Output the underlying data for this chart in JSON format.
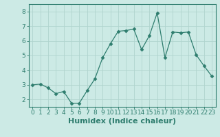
{
  "x": [
    0,
    1,
    2,
    3,
    4,
    5,
    6,
    7,
    8,
    9,
    10,
    11,
    12,
    13,
    14,
    15,
    16,
    17,
    18,
    19,
    20,
    21,
    22,
    23
  ],
  "y": [
    3.0,
    3.05,
    2.8,
    2.4,
    2.55,
    1.75,
    1.75,
    2.6,
    3.4,
    4.85,
    5.8,
    6.65,
    6.7,
    6.8,
    5.4,
    6.35,
    7.9,
    4.85,
    6.6,
    6.55,
    6.6,
    5.05,
    4.3,
    3.6
  ],
  "line_color": "#2e7d6e",
  "marker": "D",
  "marker_size": 2.5,
  "bg_color": "#cceae5",
  "grid_color": "#b0d4ce",
  "xlabel": "Humidex (Indice chaleur)",
  "xlabel_fontsize": 8,
  "tick_fontsize": 6.5,
  "ylim": [
    1.5,
    8.5
  ],
  "xlim": [
    -0.5,
    23.5
  ],
  "yticks": [
    2,
    3,
    4,
    5,
    6,
    7,
    8
  ],
  "xticks": [
    0,
    1,
    2,
    3,
    4,
    5,
    6,
    7,
    8,
    9,
    10,
    11,
    12,
    13,
    14,
    15,
    16,
    17,
    18,
    19,
    20,
    21,
    22,
    23
  ]
}
